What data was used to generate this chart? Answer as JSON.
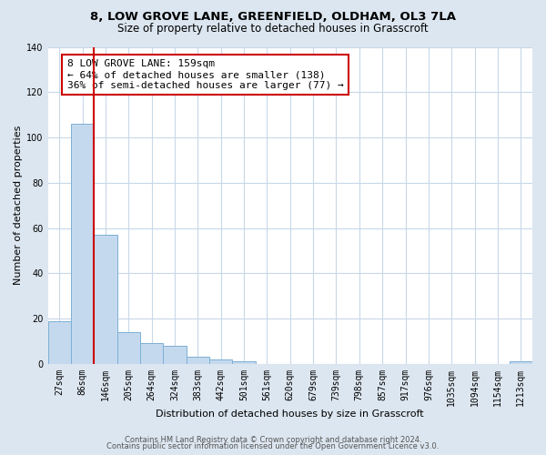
{
  "title": "8, LOW GROVE LANE, GREENFIELD, OLDHAM, OL3 7LA",
  "subtitle": "Size of property relative to detached houses in Grasscroft",
  "xlabel": "Distribution of detached houses by size in Grasscroft",
  "ylabel": "Number of detached properties",
  "bar_labels": [
    "27sqm",
    "86sqm",
    "146sqm",
    "205sqm",
    "264sqm",
    "324sqm",
    "383sqm",
    "442sqm",
    "501sqm",
    "561sqm",
    "620sqm",
    "679sqm",
    "739sqm",
    "798sqm",
    "857sqm",
    "917sqm",
    "976sqm",
    "1035sqm",
    "1094sqm",
    "1154sqm",
    "1213sqm"
  ],
  "bar_values": [
    19,
    106,
    57,
    14,
    9,
    8,
    3,
    2,
    1,
    0,
    0,
    0,
    0,
    0,
    0,
    0,
    0,
    0,
    0,
    0,
    1
  ],
  "bar_color": "#c5d9ee",
  "bar_edge_color": "#7bafd4",
  "vline_color": "#cc0000",
  "annotation_text": "8 LOW GROVE LANE: 159sqm\n← 64% of detached houses are smaller (138)\n36% of semi-detached houses are larger (77) →",
  "annotation_box_color": "#ffffff",
  "annotation_box_edge": "#cc0000",
  "ylim": [
    0,
    140
  ],
  "yticks": [
    0,
    20,
    40,
    60,
    80,
    100,
    120,
    140
  ],
  "fig_bg_color": "#dce6f0",
  "plot_bg_color": "#ffffff",
  "grid_color": "#c8d8e8",
  "footer_line1": "Contains HM Land Registry data © Crown copyright and database right 2024.",
  "footer_line2": "Contains public sector information licensed under the Open Government Licence v3.0.",
  "title_fontsize": 9.5,
  "subtitle_fontsize": 8.5,
  "xlabel_fontsize": 8,
  "ylabel_fontsize": 8,
  "tick_fontsize": 7,
  "annotation_fontsize": 8,
  "footer_fontsize": 6
}
